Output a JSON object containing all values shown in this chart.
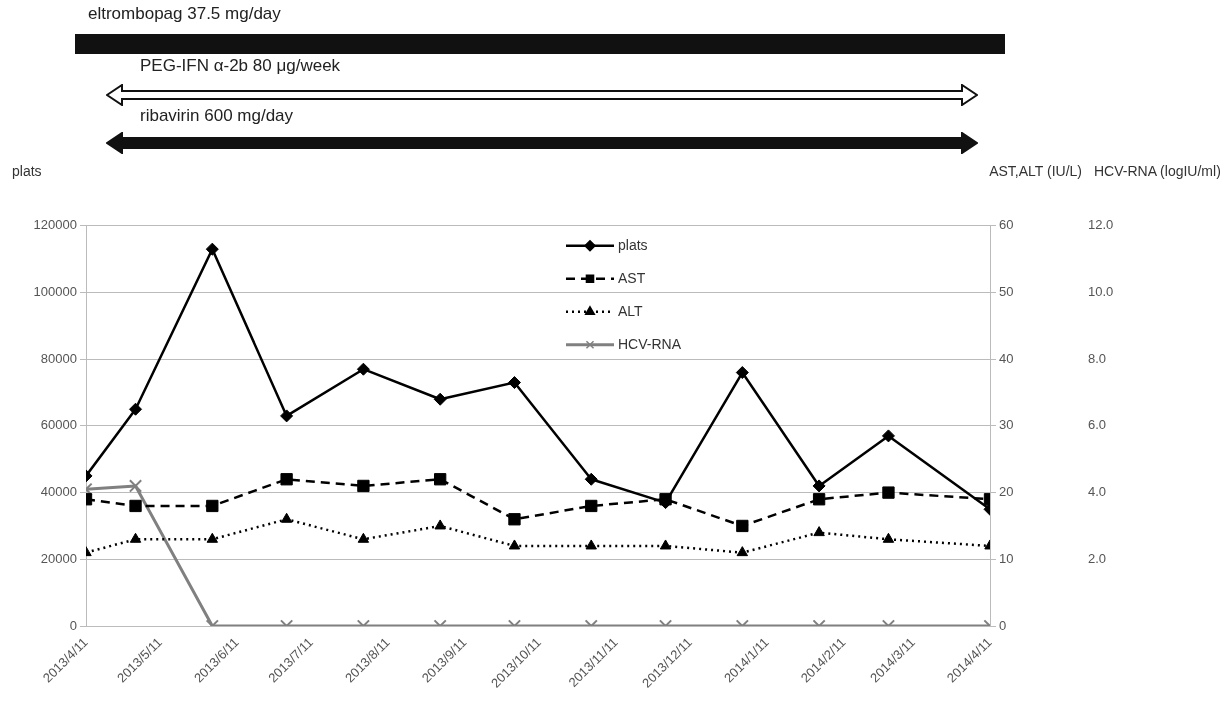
{
  "chart_data": {
    "type": "line",
    "annotations": [
      "eltrombopag 37.5 mg/day",
      "PEG-IFN α-2b 80 μg/week",
      "ribavirin 600 mg/day"
    ],
    "ylabel": "plats",
    "y2label": "AST,ALT (IU/L)",
    "y3label": "HCV-RNA (logIU/ml)",
    "x": [
      "2013-04-11",
      "2013-05-01",
      "2013-06-01",
      "2013-07-01",
      "2013-08-01",
      "2013-09-01",
      "2013-10-01",
      "2013-11-01",
      "2013-12-01",
      "2014-01-01",
      "2014-02-01",
      "2014-03-01",
      "2014-04-11"
    ],
    "xlim": [
      "2013-04-11",
      "2014-04-11"
    ],
    "xticks": [
      {
        "value": "2013-04-11",
        "label": "2013/4/11"
      },
      {
        "value": "2013-05-11",
        "label": "2013/5/11"
      },
      {
        "value": "2013-06-11",
        "label": "2013/6/11"
      },
      {
        "value": "2013-07-11",
        "label": "2013/7/11"
      },
      {
        "value": "2013-08-11",
        "label": "2013/8/11"
      },
      {
        "value": "2013-09-11",
        "label": "2013/9/11"
      },
      {
        "value": "2013-10-11",
        "label": "2013/10/11"
      },
      {
        "value": "2013-11-11",
        "label": "2013/11/11"
      },
      {
        "value": "2013-12-11",
        "label": "2013/12/11"
      },
      {
        "value": "2014-01-11",
        "label": "2014/1/11"
      },
      {
        "value": "2014-02-11",
        "label": "2014/2/11"
      },
      {
        "value": "2014-03-11",
        "label": "2014/3/11"
      },
      {
        "value": "2014-04-11",
        "label": "2014/4/11"
      }
    ],
    "ylim": [
      0,
      120000
    ],
    "yticks": [
      0,
      20000,
      40000,
      60000,
      80000,
      100000,
      120000
    ],
    "y2lim": [
      0,
      60
    ],
    "y2ticks": [
      0,
      10,
      20,
      30,
      40,
      50,
      60
    ],
    "y3lim": [
      0,
      12
    ],
    "y3ticks": [
      {
        "value": 2,
        "label": "2.0"
      },
      {
        "value": 4,
        "label": "4.0"
      },
      {
        "value": 6,
        "label": "6.0"
      },
      {
        "value": 8,
        "label": "8.0"
      },
      {
        "value": 10,
        "label": "10.0"
      },
      {
        "value": 12,
        "label": "12.0"
      }
    ],
    "series": [
      {
        "name": "plats",
        "color": "#000000",
        "marker": "diamond",
        "line_style": "solid",
        "values": [
          45000,
          65000,
          113000,
          63000,
          77000,
          68000,
          73000,
          44000,
          37000,
          76000,
          42000,
          57000,
          35000
        ]
      },
      {
        "name": "AST",
        "color": "#000000",
        "marker": "square",
        "line_style": "dashed",
        "axis": "y2",
        "values": [
          19,
          18,
          18,
          22,
          21,
          22,
          16,
          18,
          19,
          15,
          19,
          20,
          19
        ]
      },
      {
        "name": "ALT",
        "color": "#000000",
        "marker": "triangle",
        "line_style": "dotted",
        "axis": "y2",
        "values": [
          11,
          13,
          13,
          16,
          13,
          15,
          12,
          12,
          12,
          11,
          14,
          13,
          12
        ]
      },
      {
        "name": "HCV-RNA",
        "color": "#808080",
        "marker": "cross",
        "line_style": "solid",
        "axis": "y3",
        "values": [
          4.1,
          4.2,
          0,
          0,
          0,
          0,
          0,
          0,
          0,
          0,
          0,
          0,
          0
        ]
      }
    ],
    "grid": "y",
    "legend": "top"
  }
}
